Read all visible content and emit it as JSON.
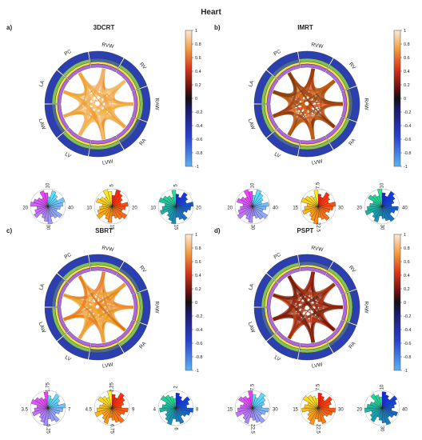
{
  "figure": {
    "title": "Heart"
  },
  "colors": {
    "ring_outer": "#2c3fb0",
    "ring_middle": "#7fc25a",
    "ring_mid2": "#f2e14a",
    "ring_inner": "#b066e0",
    "cbar_bottom": "#5ab4f0",
    "cbar_mid": "#111111",
    "cbar_top": "#fbe9d6"
  },
  "chart_data": [
    {
      "panel": "a)",
      "title": "3DCRT",
      "type": "chord",
      "nodes": [
        "RVW",
        "RV",
        "RAW",
        "RA",
        "LVW",
        "LV",
        "LAW",
        "LA",
        "PC"
      ],
      "colorbar": {
        "min": -1,
        "max": 1,
        "ticks": [
          "1",
          "0.8",
          "0.6",
          "0.4",
          "0.2",
          "0",
          "-0.2",
          "-0.4",
          "-0.6",
          "-0.8",
          "-1"
        ]
      },
      "polar": [
        {
          "type": "polar-histogram",
          "ticks": [
            "10",
            "40",
            "30",
            "20"
          ],
          "colormap": "cool"
        },
        {
          "type": "polar-histogram",
          "ticks": [
            "5",
            "20",
            "15",
            "10"
          ],
          "colormap": "autumn"
        },
        {
          "type": "polar-histogram",
          "ticks": [
            "5",
            "20",
            "15",
            "10"
          ],
          "colormap": "winter"
        }
      ]
    },
    {
      "panel": "b)",
      "title": "IMRT",
      "type": "chord",
      "nodes": [
        "RVW",
        "RV",
        "RAW",
        "RA",
        "LVW",
        "LV",
        "LAW",
        "LA",
        "PC"
      ],
      "colorbar": {
        "min": -1,
        "max": 1,
        "ticks": [
          "1",
          "0.8",
          "0.6",
          "0.4",
          "0.2",
          "0",
          "-0.2",
          "-0.4",
          "-0.6",
          "-0.8",
          "-1"
        ]
      },
      "polar": [
        {
          "type": "polar-histogram",
          "ticks": [
            "10",
            "40",
            "30",
            "20"
          ],
          "colormap": "cool"
        },
        {
          "type": "polar-histogram",
          "ticks": [
            "7.5",
            "30",
            "22.5",
            "15"
          ],
          "colormap": "autumn"
        },
        {
          "type": "polar-histogram",
          "ticks": [
            "10",
            "40",
            "30",
            "20"
          ],
          "colormap": "winter"
        }
      ]
    },
    {
      "panel": "c)",
      "title": "SBRT",
      "type": "chord",
      "nodes": [
        "RVW",
        "RV",
        "RAW",
        "RA",
        "LVW",
        "LV",
        "LAW",
        "LA",
        "PC"
      ],
      "colorbar": {
        "min": -1,
        "max": 1,
        "ticks": [
          "1",
          "0.8",
          "0.6",
          "0.4",
          "0.2",
          "0",
          "-0.2",
          "-0.4",
          "-0.6",
          "-0.8",
          "-1"
        ]
      },
      "polar": [
        {
          "type": "polar-histogram",
          "ticks": [
            "1.75",
            "7",
            "5.25",
            "3.5"
          ],
          "colormap": "cool"
        },
        {
          "type": "polar-histogram",
          "ticks": [
            "2.25",
            "9",
            "6.75",
            "4.5"
          ],
          "colormap": "autumn"
        },
        {
          "type": "polar-histogram",
          "ticks": [
            "2",
            "8",
            "6",
            "4"
          ],
          "colormap": "winter"
        }
      ]
    },
    {
      "panel": "d)",
      "title": "PSPT",
      "type": "chord",
      "nodes": [
        "RVW",
        "RV",
        "RAW",
        "RA",
        "LVW",
        "LV",
        "LAW",
        "LA",
        "PC"
      ],
      "colorbar": {
        "min": -1,
        "max": 1,
        "ticks": [
          "1",
          "0.8",
          "0.6",
          "0.4",
          "0.2",
          "0",
          "-0.2",
          "-0.4",
          "-0.6",
          "-0.8",
          "-1"
        ]
      },
      "polar": [
        {
          "type": "polar-histogram",
          "ticks": [
            "7.5",
            "30",
            "22.5",
            "15"
          ],
          "colormap": "cool"
        },
        {
          "type": "polar-histogram",
          "ticks": [
            "7.5",
            "30",
            "22.5",
            "15"
          ],
          "colormap": "autumn"
        },
        {
          "type": "polar-histogram",
          "ticks": [
            "10",
            "40",
            "30",
            "20"
          ],
          "colormap": "winter"
        }
      ]
    }
  ]
}
